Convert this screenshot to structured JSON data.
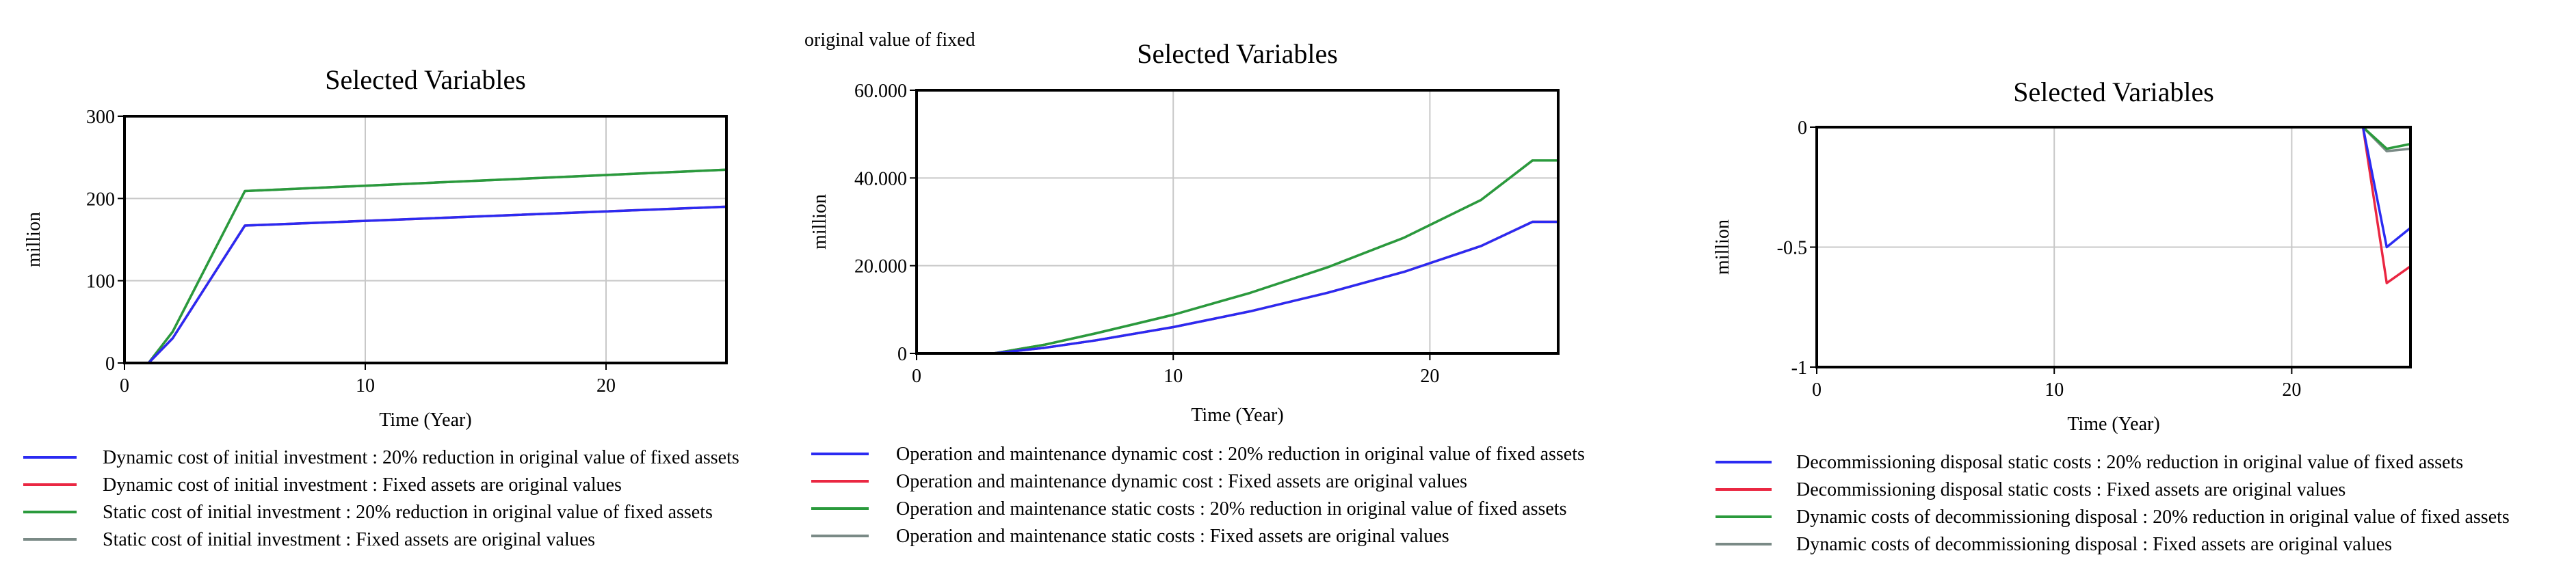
{
  "fragment_label": "original value of fixed",
  "colors": {
    "blue": "#2b2bf2",
    "red": "#ea2742",
    "green": "#2a9a3c",
    "gray": "#7a8a86",
    "grid": "#c8c8c8"
  },
  "chart_data": [
    {
      "type": "line",
      "title": "Selected Variables",
      "xlabel": "Time (Year)",
      "ylabel": "million",
      "xlim": [
        0,
        25
      ],
      "ylim": [
        0,
        300
      ],
      "xticks": [
        0,
        10,
        20
      ],
      "yticks": [
        0,
        100,
        200,
        300
      ],
      "ytick_labels": [
        "0",
        "100",
        "200",
        "300"
      ],
      "series": [
        {
          "name": "Dynamic cost of initial investment : 20% reduction in original value of fixed assets",
          "color": "blue",
          "x": [
            1,
            2,
            5,
            25
          ],
          "y": [
            0,
            30,
            167,
            190
          ]
        },
        {
          "name": "Dynamic cost of initial investment : Fixed assets are original values",
          "color": "red",
          "x": [
            1,
            2,
            5,
            25
          ],
          "y": [
            0,
            30,
            167,
            190
          ]
        },
        {
          "name": "Static cost of initial investment : 20% reduction in original value of fixed assets",
          "color": "green",
          "x": [
            1,
            2,
            5,
            25
          ],
          "y": [
            0,
            38,
            209,
            235
          ]
        },
        {
          "name": "Static cost of initial investment : Fixed assets are original values",
          "color": "gray",
          "x": [
            1,
            2,
            5,
            25
          ],
          "y": [
            0,
            38,
            209,
            235
          ]
        }
      ]
    },
    {
      "type": "line",
      "title": "Selected Variables",
      "xlabel": "Time (Year)",
      "ylabel": "million",
      "xlim": [
        0,
        25
      ],
      "ylim": [
        0,
        60000
      ],
      "xticks": [
        0,
        10,
        20
      ],
      "yticks": [
        0,
        20000,
        40000,
        60000
      ],
      "ytick_labels": [
        "0",
        "20.000",
        "40.000",
        "60.000"
      ],
      "series": [
        {
          "name": "Operation and maintenance dynamic cost : 20% reduction in original value of fixed assets",
          "color": "blue",
          "x": [
            3,
            5,
            7,
            10,
            13,
            16,
            19,
            22,
            24,
            25
          ],
          "y": [
            0,
            1300,
            3000,
            6000,
            9600,
            13800,
            18600,
            24500,
            30000,
            30000
          ]
        },
        {
          "name": "Operation and maintenance dynamic cost : Fixed assets are original values",
          "color": "red",
          "x": [
            3,
            5,
            7,
            10,
            13,
            16,
            19,
            22,
            24,
            25
          ],
          "y": [
            0,
            1300,
            3000,
            6000,
            9600,
            13800,
            18600,
            24500,
            30000,
            30000
          ]
        },
        {
          "name": "Operation and maintenance static costs : 20% reduction in original value of fixed assets",
          "color": "green",
          "x": [
            3,
            5,
            7,
            10,
            13,
            16,
            19,
            22,
            24,
            25
          ],
          "y": [
            0,
            2000,
            4600,
            8800,
            13800,
            19600,
            26400,
            35000,
            44000,
            44000
          ]
        },
        {
          "name": "Operation and maintenance static costs : Fixed assets are original values",
          "color": "gray",
          "x": [
            3,
            5,
            7,
            10,
            13,
            16,
            19,
            22,
            24,
            25
          ],
          "y": [
            0,
            2000,
            4600,
            8800,
            13800,
            19600,
            26400,
            35000,
            44000,
            44000
          ]
        }
      ]
    },
    {
      "type": "line",
      "title": "Selected Variables",
      "xlabel": "Time (Year)",
      "ylabel": "million",
      "xlim": [
        0,
        25
      ],
      "ylim": [
        -1,
        0
      ],
      "xticks": [
        0,
        10,
        20
      ],
      "yticks": [
        0,
        -0.5,
        -1
      ],
      "ytick_labels": [
        "0",
        "-0.5",
        "-1"
      ],
      "series": [
        {
          "name": "Decommissioning disposal static costs : 20% reduction in original value of fixed assets",
          "color": "blue",
          "x": [
            23,
            24,
            25
          ],
          "y": [
            0,
            -0.5,
            -0.42
          ]
        },
        {
          "name": "Decommissioning disposal static costs : Fixed assets are original values",
          "color": "red",
          "x": [
            23,
            24,
            25
          ],
          "y": [
            0,
            -0.65,
            -0.58
          ]
        },
        {
          "name": "Dynamic costs of decommissioning disposal : 20% reduction in original value of fixed assets",
          "color": "green",
          "x": [
            23,
            24,
            25
          ],
          "y": [
            0,
            -0.09,
            -0.07
          ]
        },
        {
          "name": "Dynamic costs of decommissioning disposal : Fixed assets are original values",
          "color": "gray",
          "x": [
            23,
            24,
            25
          ],
          "y": [
            0,
            -0.1,
            -0.09
          ]
        }
      ]
    }
  ]
}
